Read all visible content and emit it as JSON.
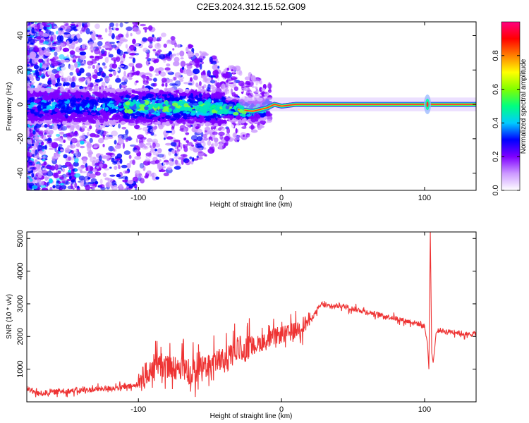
{
  "title": "C2E3.2024.312.15.52.G09",
  "chart_data": [
    {
      "type": "heatmap",
      "xlabel": "Height of straight line (km)",
      "ylabel": "Frequency (Hz)",
      "xlim": [
        -178,
        136
      ],
      "ylim": [
        -50,
        48
      ],
      "x_ticks": [
        -100,
        0,
        100
      ],
      "y_ticks": [
        40,
        20,
        0,
        -20,
        -40
      ],
      "colorbar": {
        "label": "Normalized spectral amplitude",
        "range": [
          0,
          1
        ],
        "ticks": [
          "0.0",
          "0.2",
          "0.4",
          "0.6",
          "0.8"
        ],
        "colors": [
          "#ffffff",
          "#cc99ff",
          "#7f00ff",
          "#0000ff",
          "#00ccff",
          "#00ff80",
          "#80ff00",
          "#ffff00",
          "#ff8000",
          "#ff0000",
          "#ff0080"
        ]
      },
      "ridge": [
        {
          "x": -178,
          "f": -1.0
        },
        {
          "x": -60,
          "f": -1.5
        },
        {
          "x": -30,
          "f": -3.0
        },
        {
          "x": -20,
          "f": -4.0
        },
        {
          "x": -10,
          "f": -2.0
        },
        {
          "x": -5,
          "f": 0.0
        },
        {
          "x": 0,
          "f": -1.0
        },
        {
          "x": 5,
          "f": -0.5
        },
        {
          "x": 10,
          "f": 0.0
        },
        {
          "x": 136,
          "f": 0.0
        }
      ]
    },
    {
      "type": "line",
      "xlabel": "Height of straight line (km)",
      "ylabel": "SNR (10 * v/v)",
      "xlim": [
        -178,
        136
      ],
      "ylim": [
        0,
        5200
      ],
      "x_ticks": [
        -100,
        0,
        100
      ],
      "y_ticks": [
        1000,
        2000,
        3000,
        4000,
        5000
      ],
      "color": "#ee3333",
      "series": [
        {
          "x": [
            -178,
            -170,
            -160,
            -150,
            -140,
            -130,
            -120,
            -110,
            -100,
            -95,
            -90,
            -85,
            -80,
            -75,
            -70,
            -65,
            -60,
            -55,
            -50,
            -45,
            -40,
            -35,
            -30,
            -27,
            -25,
            -20,
            -15,
            -10,
            -5,
            0,
            5,
            10,
            15,
            20,
            25,
            28,
            30,
            35,
            40,
            45,
            50,
            55,
            60,
            65,
            70,
            75,
            80,
            85,
            90,
            95,
            100,
            102,
            103,
            104,
            105,
            106,
            107,
            108,
            110,
            115,
            120,
            125,
            130,
            136
          ],
          "y": [
            400,
            250,
            300,
            330,
            350,
            380,
            420,
            450,
            500,
            750,
            1000,
            1100,
            1050,
            950,
            950,
            900,
            850,
            950,
            1100,
            1200,
            1200,
            1300,
            1600,
            1600,
            1550,
            1700,
            1800,
            1850,
            2000,
            2050,
            2100,
            2200,
            2350,
            2500,
            2800,
            3000,
            2950,
            2900,
            2950,
            2900,
            2850,
            2800,
            2750,
            2700,
            2650,
            2600,
            2550,
            2500,
            2450,
            2400,
            2300,
            1800,
            1000,
            5200,
            1500,
            1200,
            1600,
            2100,
            2200,
            2150,
            2150,
            2100,
            2050,
            2100
          ]
        }
      ]
    }
  ]
}
